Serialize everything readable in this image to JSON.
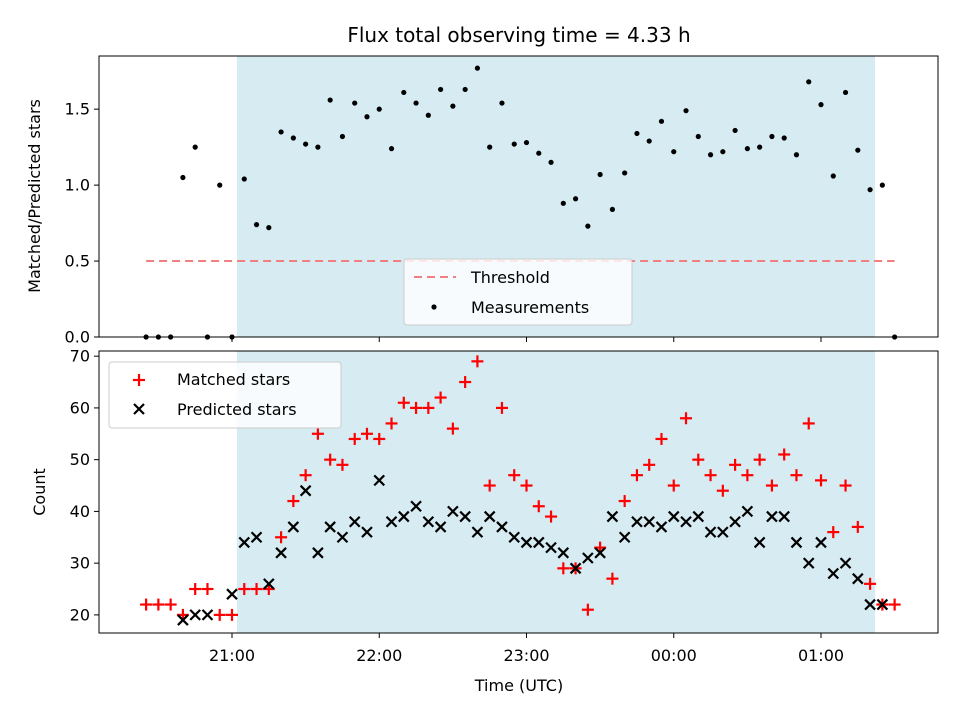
{
  "chart_data": [
    {
      "type": "scatter",
      "title": "Flux total observing time = 4.33 h",
      "xlabel": "",
      "ylabel": "Matched/Predicted stars",
      "ylim": [
        0,
        1.85
      ],
      "y_ticks": [
        0.0,
        0.5,
        1.0,
        1.5
      ],
      "y_tick_labels": [
        "0.0",
        "0.5",
        "1.0",
        "1.5"
      ],
      "x_tick_labels": [],
      "observing_window": {
        "start": "21:02",
        "end": "01:22",
        "color": "#add8e6"
      },
      "threshold": {
        "name": "Threshold",
        "value": 0.5,
        "x_start": "20:25",
        "x_end": "01:30",
        "color": "#f08080",
        "style": "dashed"
      },
      "series": [
        {
          "name": "Measurements",
          "color": "#000000",
          "marker": "dot",
          "x": [
            "20:25",
            "20:30",
            "20:35",
            "20:40",
            "20:45",
            "20:50",
            "20:55",
            "21:00",
            "21:05",
            "21:10",
            "21:15",
            "21:20",
            "21:25",
            "21:30",
            "21:35",
            "21:40",
            "21:45",
            "21:50",
            "21:55",
            "22:00",
            "22:05",
            "22:10",
            "22:15",
            "22:20",
            "22:25",
            "22:30",
            "22:35",
            "22:40",
            "22:45",
            "22:50",
            "22:55",
            "23:00",
            "23:05",
            "23:10",
            "23:15",
            "23:20",
            "23:25",
            "23:30",
            "23:35",
            "23:40",
            "23:45",
            "23:50",
            "23:55",
            "00:00",
            "00:05",
            "00:10",
            "00:15",
            "00:20",
            "00:25",
            "00:30",
            "00:35",
            "00:40",
            "00:45",
            "00:50",
            "00:55",
            "01:00",
            "01:05",
            "01:10",
            "01:15",
            "01:20",
            "01:25",
            "01:30"
          ],
          "y": [
            0,
            0,
            0,
            1.05,
            1.25,
            0,
            1.0,
            0,
            1.04,
            0.74,
            0.72,
            1.35,
            1.31,
            1.27,
            1.25,
            1.56,
            1.32,
            1.54,
            1.45,
            1.5,
            1.24,
            1.61,
            1.54,
            1.46,
            1.63,
            1.52,
            1.63,
            1.77,
            1.25,
            1.54,
            1.27,
            1.28,
            1.21,
            1.15,
            0.88,
            0.91,
            0.73,
            1.07,
            0.84,
            1.08,
            1.34,
            1.29,
            1.42,
            1.22,
            1.49,
            1.32,
            1.2,
            1.22,
            1.36,
            1.24,
            1.25,
            1.32,
            1.31,
            1.2,
            1.68,
            1.53,
            1.06,
            1.61,
            1.23,
            0.97,
            1.0,
            0
          ]
        }
      ],
      "legend": {
        "entries": [
          "Threshold",
          "Measurements"
        ],
        "placement": "lower center"
      }
    },
    {
      "type": "scatter",
      "title": "",
      "xlabel": "Time (UTC)",
      "ylabel": "Count",
      "ylim": [
        16.5,
        71
      ],
      "y_ticks": [
        20,
        30,
        40,
        50,
        60,
        70
      ],
      "y_tick_labels": [
        "20",
        "30",
        "40",
        "50",
        "60",
        "70"
      ],
      "x_ticks": [
        "21:00",
        "22:00",
        "23:00",
        "00:00",
        "01:00"
      ],
      "x_tick_labels": [
        "21:00",
        "22:00",
        "23:00",
        "00:00",
        "01:00"
      ],
      "observing_window": {
        "start": "21:02",
        "end": "01:22",
        "color": "#add8e6"
      },
      "series": [
        {
          "name": "Matched stars",
          "color": "#ff0000",
          "marker": "plus",
          "x": [
            "20:25",
            "20:30",
            "20:35",
            "20:40",
            "20:45",
            "20:50",
            "20:55",
            "21:00",
            "21:05",
            "21:10",
            "21:15",
            "21:20",
            "21:25",
            "21:30",
            "21:35",
            "21:40",
            "21:45",
            "21:50",
            "21:55",
            "22:00",
            "22:05",
            "22:10",
            "22:15",
            "22:20",
            "22:25",
            "22:30",
            "22:35",
            "22:40",
            "22:45",
            "22:50",
            "22:55",
            "23:00",
            "23:05",
            "23:10",
            "23:15",
            "23:20",
            "23:25",
            "23:30",
            "23:35",
            "23:40",
            "23:45",
            "23:50",
            "23:55",
            "00:00",
            "00:05",
            "00:10",
            "00:15",
            "00:20",
            "00:25",
            "00:30",
            "00:35",
            "00:40",
            "00:45",
            "00:50",
            "00:55",
            "01:00",
            "01:05",
            "01:10",
            "01:15",
            "01:20",
            "01:25",
            "01:30"
          ],
          "y": [
            22,
            22,
            22,
            20,
            25,
            25,
            20,
            20,
            25,
            25,
            25,
            35,
            42,
            47,
            55,
            50,
            49,
            54,
            55,
            54,
            57,
            61,
            60,
            60,
            62,
            56,
            65,
            69,
            45,
            60,
            47,
            45,
            41,
            39,
            29,
            29,
            21,
            33,
            27,
            42,
            47,
            49,
            54,
            45,
            58,
            50,
            47,
            44,
            49,
            47,
            50,
            45,
            51,
            47,
            57,
            46,
            36,
            45,
            37,
            26,
            22,
            22
          ]
        },
        {
          "name": "Predicted stars",
          "color": "#000000",
          "marker": "x",
          "x": [
            "20:40",
            "20:45",
            "20:50",
            "21:00",
            "21:05",
            "21:10",
            "21:15",
            "21:20",
            "21:25",
            "21:30",
            "21:35",
            "21:40",
            "21:45",
            "21:50",
            "21:55",
            "22:00",
            "22:05",
            "22:10",
            "22:15",
            "22:20",
            "22:25",
            "22:30",
            "22:35",
            "22:40",
            "22:45",
            "22:50",
            "22:55",
            "23:00",
            "23:05",
            "23:10",
            "23:15",
            "23:20",
            "23:25",
            "23:30",
            "23:35",
            "23:40",
            "23:45",
            "23:50",
            "23:55",
            "00:00",
            "00:05",
            "00:10",
            "00:15",
            "00:20",
            "00:25",
            "00:30",
            "00:35",
            "00:40",
            "00:45",
            "00:50",
            "00:55",
            "01:00",
            "01:05",
            "01:10",
            "01:15",
            "01:20",
            "01:25"
          ],
          "y": [
            19,
            20,
            20,
            24,
            34,
            35,
            26,
            32,
            37,
            44,
            32,
            37,
            35,
            38,
            36,
            46,
            38,
            39,
            41,
            38,
            37,
            40,
            39,
            36,
            39,
            37,
            35,
            34,
            34,
            33,
            32,
            29,
            31,
            32,
            39,
            35,
            38,
            38,
            37,
            39,
            38,
            39,
            36,
            36,
            38,
            40,
            34,
            39,
            39,
            34,
            30,
            34,
            28,
            30,
            27,
            22,
            22
          ]
        }
      ],
      "legend": {
        "entries": [
          "Matched stars",
          "Predicted stars"
        ],
        "placement": "upper left"
      }
    }
  ]
}
